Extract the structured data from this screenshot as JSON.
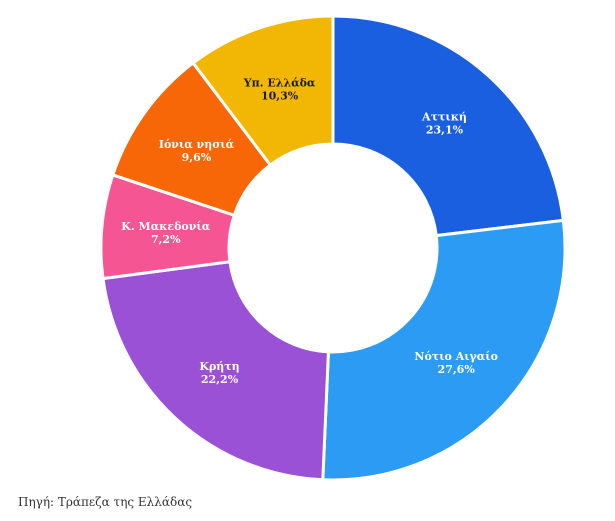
{
  "chart_data": {
    "type": "pie",
    "variant": "donut",
    "title": "",
    "slices": [
      {
        "label": "Αττική",
        "value": 23.1,
        "value_text": "23,1%",
        "color": "#1a5fe0",
        "text_color": "#ffffff"
      },
      {
        "label": "Νότιο Αιγαίο",
        "value": 27.6,
        "value_text": "27,6%",
        "color": "#2b9bf4",
        "text_color": "#ffffff"
      },
      {
        "label": "Κρήτη",
        "value": 22.2,
        "value_text": "22,2%",
        "color": "#9b51d6",
        "text_color": "#ffffff"
      },
      {
        "label": "Κ. Μακεδονία",
        "value": 7.2,
        "value_text": "7,2%",
        "color": "#f55592",
        "text_color": "#ffffff"
      },
      {
        "label": "Ιόνια νησιά",
        "value": 9.6,
        "value_text": "9,6%",
        "color": "#f76707",
        "text_color": "#ffffff"
      },
      {
        "label": "Υπ. Ελλάδα",
        "value": 10.3,
        "value_text": "10,3%",
        "color": "#f2b705",
        "text_color": "#1a1a1a"
      }
    ]
  },
  "source": "Πηγή: Τράπεζα της Ελλάδας"
}
